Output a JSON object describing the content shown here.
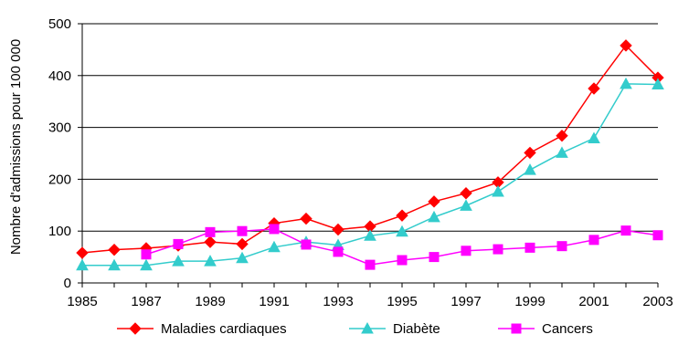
{
  "chart_data": {
    "type": "line",
    "title": "",
    "xlabel": "",
    "ylabel": "Nombre d'admissions pour 100 000",
    "xlim": [
      1985,
      2003
    ],
    "ylim": [
      0,
      500
    ],
    "x_ticks": [
      1985,
      1987,
      1989,
      1991,
      1993,
      1995,
      1997,
      1999,
      2001,
      2003
    ],
    "y_ticks": [
      0,
      100,
      200,
      300,
      400,
      500
    ],
    "grid": "horizontal",
    "legend_position": "bottom",
    "series": [
      {
        "name": "Maladies cardiaques",
        "color": "#ff0000",
        "marker": "diamond",
        "x": [
          1985,
          1986,
          1987,
          1988,
          1989,
          1990,
          1991,
          1992,
          1993,
          1994,
          1995,
          1996,
          1997,
          1998,
          1999,
          2000,
          2001,
          2002,
          2003
        ],
        "values": [
          58,
          64,
          67,
          72,
          79,
          75,
          115,
          124,
          103,
          109,
          130,
          157,
          173,
          194,
          251,
          284,
          375,
          458,
          396
        ]
      },
      {
        "name": "Diabète",
        "color": "#33cccc",
        "marker": "triangle",
        "x": [
          1985,
          1986,
          1987,
          1988,
          1989,
          1990,
          1991,
          1992,
          1993,
          1994,
          1995,
          1996,
          1997,
          1998,
          1999,
          2000,
          2001,
          2002,
          2003
        ],
        "values": [
          34,
          34,
          34,
          42,
          42,
          48,
          69,
          79,
          73,
          91,
          99,
          127,
          149,
          176,
          218,
          251,
          279,
          384,
          383
        ]
      },
      {
        "name": "Cancers",
        "color": "#ff00ff",
        "marker": "square",
        "x": [
          1987,
          1988,
          1989,
          1990,
          1991,
          1992,
          1993,
          1994,
          1995,
          1996,
          1997,
          1998,
          1999,
          2000,
          2001,
          2002,
          2003
        ],
        "values": [
          55,
          75,
          98,
          100,
          104,
          74,
          60,
          35,
          44,
          50,
          62,
          65,
          68,
          71,
          83,
          101,
          92
        ]
      }
    ]
  }
}
